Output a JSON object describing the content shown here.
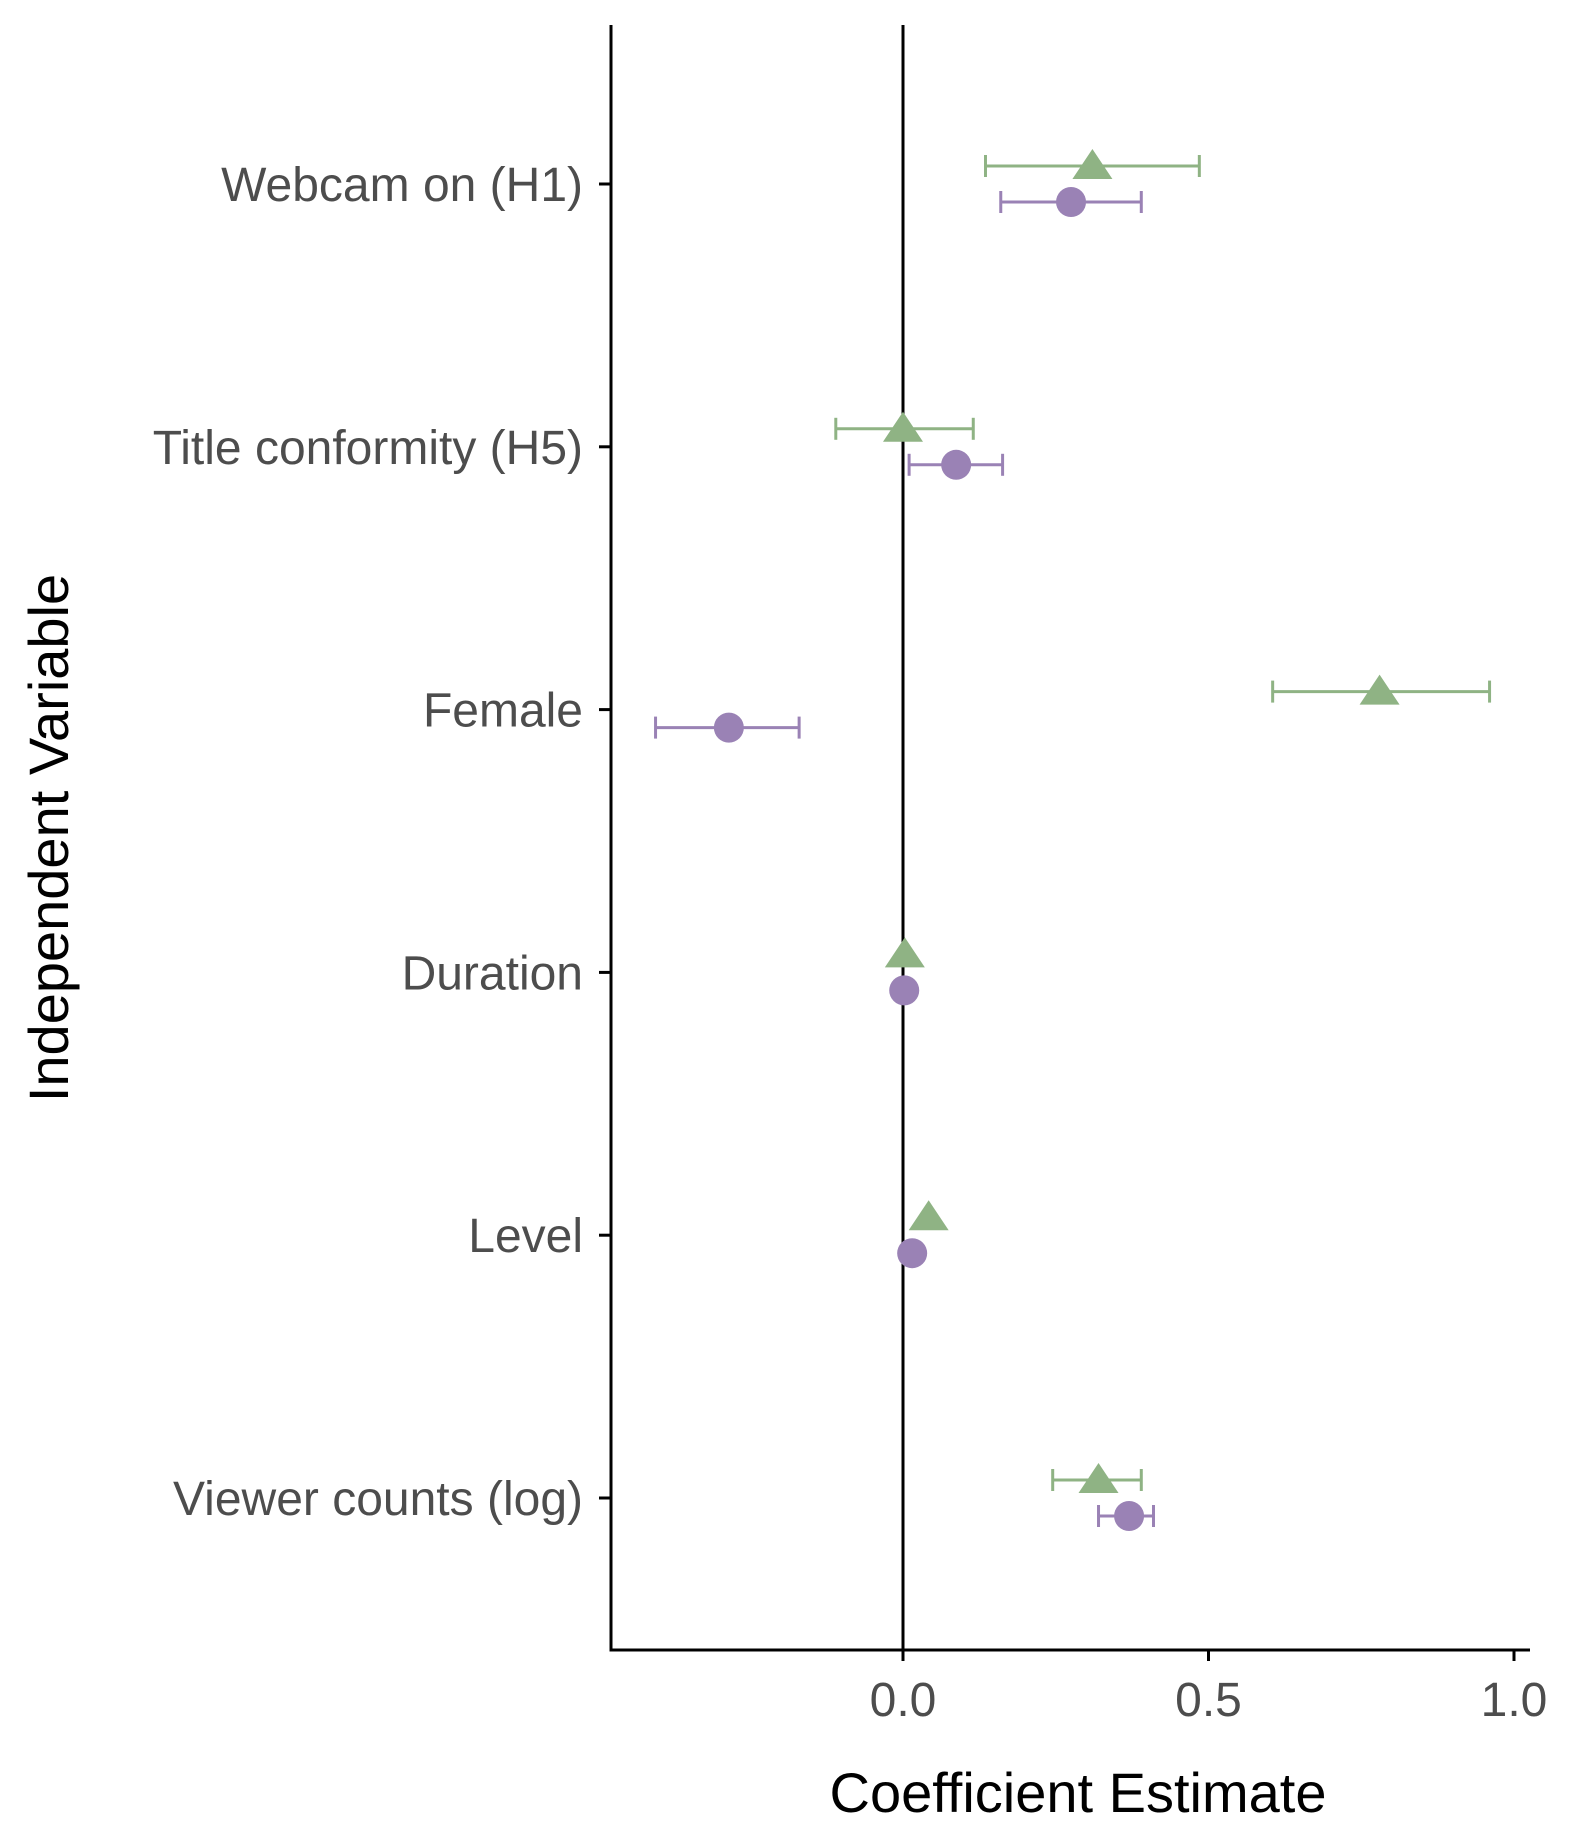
{
  "chart_data": {
    "type": "scatter",
    "xlabel": "Coefficient Estimate",
    "ylabel": "Independent Variable",
    "xlim": [
      -0.47,
      1.02
    ],
    "xticks": [
      0.0,
      0.5,
      1.0
    ],
    "xtick_labels": [
      "0.0",
      "0.5",
      "1.0"
    ],
    "reference_line_x": 0,
    "grid": false,
    "legend": "none",
    "categories": [
      "Webcam on (H1)",
      "Title conformity (H5)",
      "Female",
      "Duration",
      "Level",
      "Viewer counts (log)"
    ],
    "series": [
      {
        "marker": "triangle",
        "color": "#8fb384",
        "points": [
          {
            "estimate": 0.31,
            "lower": 0.135,
            "upper": 0.485
          },
          {
            "estimate": 0.0,
            "lower": -0.11,
            "upper": 0.115
          },
          {
            "estimate": 0.78,
            "lower": 0.605,
            "upper": 0.96
          },
          {
            "estimate": 0.003,
            "lower": null,
            "upper": null
          },
          {
            "estimate": 0.042,
            "lower": null,
            "upper": null
          },
          {
            "estimate": 0.32,
            "lower": 0.245,
            "upper": 0.39
          }
        ]
      },
      {
        "marker": "circle",
        "color": "#9a82b5",
        "points": [
          {
            "estimate": 0.275,
            "lower": 0.16,
            "upper": 0.39
          },
          {
            "estimate": 0.087,
            "lower": 0.01,
            "upper": 0.163
          },
          {
            "estimate": -0.285,
            "lower": -0.405,
            "upper": -0.17
          },
          {
            "estimate": 0.002,
            "lower": null,
            "upper": null
          },
          {
            "estimate": 0.015,
            "lower": null,
            "upper": null
          },
          {
            "estimate": 0.37,
            "lower": 0.32,
            "upper": 0.41
          }
        ]
      }
    ]
  }
}
